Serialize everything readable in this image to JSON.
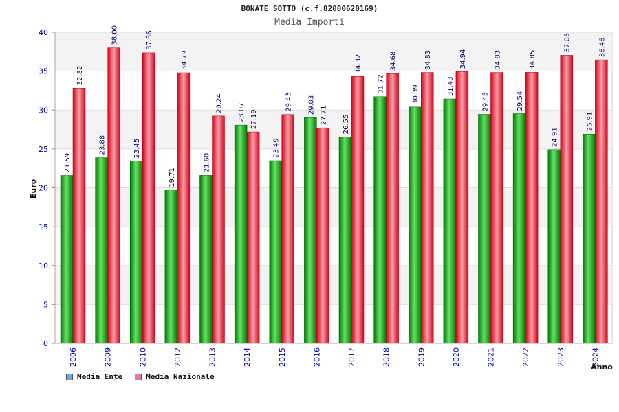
{
  "chart_data": {
    "type": "bar",
    "title": "BONATE SOTTO (c.f.82000620169)",
    "subtitle": "Media Importi",
    "xlabel": "Anno",
    "ylabel": "Euro",
    "ylim": [
      0,
      40
    ],
    "yticks": [
      0,
      5,
      10,
      15,
      20,
      25,
      30,
      35,
      40
    ],
    "categories": [
      "2006",
      "2009",
      "2010",
      "2012",
      "2013",
      "2014",
      "2015",
      "2016",
      "2017",
      "2018",
      "2019",
      "2020",
      "2021",
      "2022",
      "2023",
      "2024"
    ],
    "series": [
      {
        "name": "Media Ente",
        "color": "#00a000",
        "values": [
          21.59,
          23.88,
          23.45,
          19.71,
          21.6,
          28.07,
          23.49,
          29.03,
          26.55,
          31.72,
          30.39,
          31.43,
          29.45,
          29.54,
          24.91,
          26.91
        ],
        "labels": [
          "21.59",
          "23.88",
          "23.45",
          "19.71",
          "21.60",
          "28.07",
          "23.49",
          "29.03",
          "26.55",
          "31.72",
          "30.39",
          "31.43",
          "29.45",
          "29.54",
          "24.91",
          "26.91"
        ]
      },
      {
        "name": "Media Nazionale",
        "color": "#e0001a",
        "values": [
          32.82,
          38.0,
          37.36,
          34.79,
          29.24,
          27.19,
          29.43,
          27.71,
          34.32,
          34.68,
          34.83,
          34.94,
          34.83,
          34.85,
          37.05,
          36.46
        ],
        "labels": [
          "32.82",
          "38.00",
          "37.36",
          "34.79",
          "29.24",
          "27.19",
          "29.43",
          "27.71",
          "34.32",
          "34.68",
          "34.83",
          "34.94",
          "34.83",
          "34.85",
          "37.05",
          "36.46"
        ]
      }
    ],
    "legend": {
      "placement": "bottom-left",
      "items": [
        {
          "label": "Media Ente",
          "color": "#6aa8e8"
        },
        {
          "label": "Media Nazionale",
          "color": "#e07aa8"
        }
      ]
    }
  }
}
